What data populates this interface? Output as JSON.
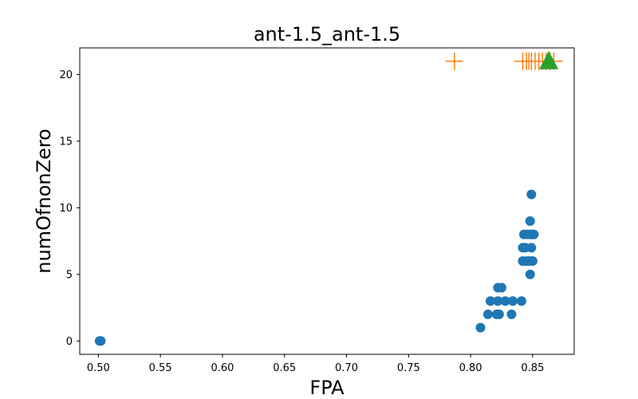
{
  "chart_data": {
    "type": "scatter",
    "title": "ant-1.5_ant-1.5",
    "xlabel": "FPA",
    "ylabel": "numOfnonZero",
    "xlim": [
      0.485,
      0.8835
    ],
    "ylim": [
      -1.0,
      22.0
    ],
    "xticks": [
      0.5,
      0.55,
      0.6,
      0.65,
      0.7,
      0.75,
      0.8,
      0.85
    ],
    "xtick_labels": [
      "0.50",
      "0.55",
      "0.60",
      "0.65",
      "0.70",
      "0.75",
      "0.80",
      "0.85"
    ],
    "yticks": [
      0,
      5,
      10,
      15,
      20
    ],
    "ytick_labels": [
      "0",
      "5",
      "10",
      "15",
      "20"
    ],
    "grid": false,
    "colors": {
      "circles": "#1f77b4",
      "plus": "#ff7f0e",
      "triangle": "#2ca02c"
    },
    "series": [
      {
        "marker": "circle",
        "points": [
          [
            0.501,
            0
          ],
          [
            0.502,
            0
          ],
          [
            0.808,
            1
          ],
          [
            0.814,
            2
          ],
          [
            0.821,
            2
          ],
          [
            0.823,
            2
          ],
          [
            0.833,
            2
          ],
          [
            0.816,
            3
          ],
          [
            0.822,
            3
          ],
          [
            0.828,
            3
          ],
          [
            0.834,
            3
          ],
          [
            0.841,
            3
          ],
          [
            0.822,
            4
          ],
          [
            0.825,
            4
          ],
          [
            0.848,
            5
          ],
          [
            0.842,
            6
          ],
          [
            0.845,
            6
          ],
          [
            0.847,
            6
          ],
          [
            0.849,
            6
          ],
          [
            0.85,
            6
          ],
          [
            0.842,
            7
          ],
          [
            0.844,
            7
          ],
          [
            0.849,
            7
          ],
          [
            0.843,
            8
          ],
          [
            0.846,
            8
          ],
          [
            0.848,
            8
          ],
          [
            0.85,
            8
          ],
          [
            0.851,
            8
          ],
          [
            0.848,
            9
          ],
          [
            0.849,
            11
          ]
        ]
      },
      {
        "marker": "plus",
        "points": [
          [
            0.787,
            21
          ],
          [
            0.842,
            21
          ],
          [
            0.845,
            21
          ],
          [
            0.847,
            21
          ],
          [
            0.849,
            21
          ],
          [
            0.852,
            21
          ],
          [
            0.855,
            21
          ],
          [
            0.858,
            21
          ],
          [
            0.861,
            21
          ],
          [
            0.864,
            21
          ],
          [
            0.867,
            21
          ]
        ]
      },
      {
        "marker": "triangle",
        "points": [
          [
            0.863,
            21
          ]
        ]
      }
    ]
  }
}
